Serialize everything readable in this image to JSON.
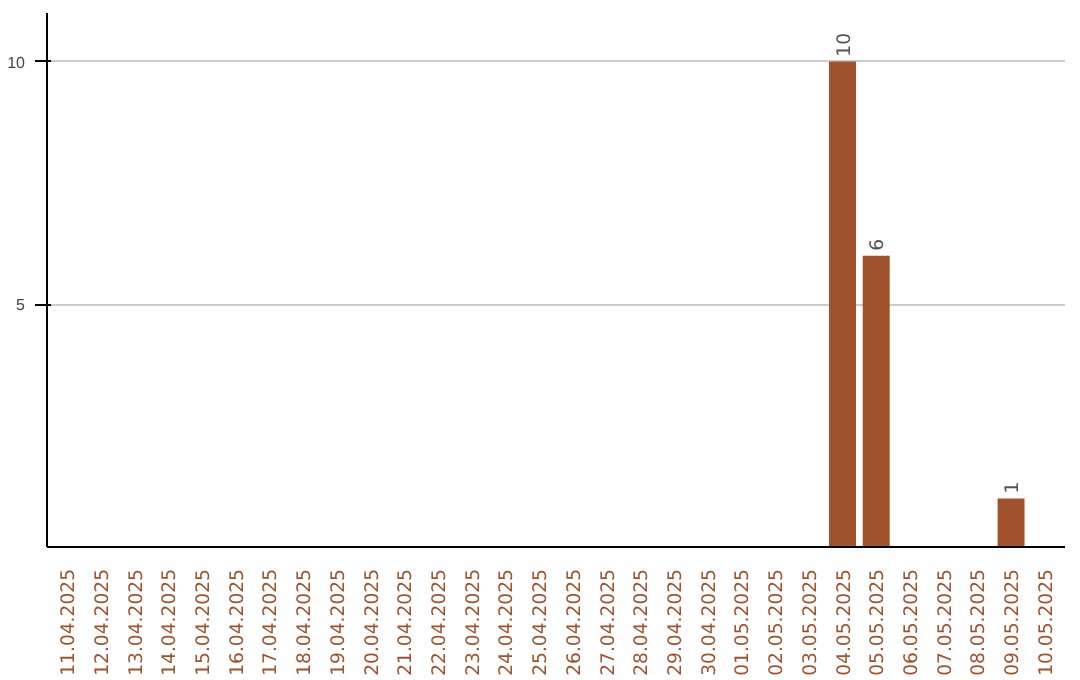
{
  "chart_data": {
    "type": "bar",
    "categories": [
      "11.04.2025",
      "12.04.2025",
      "13.04.2025",
      "14.04.2025",
      "15.04.2025",
      "16.04.2025",
      "17.04.2025",
      "18.04.2025",
      "19.04.2025",
      "20.04.2025",
      "21.04.2025",
      "22.04.2025",
      "23.04.2025",
      "24.04.2025",
      "25.04.2025",
      "26.04.2025",
      "27.04.2025",
      "28.04.2025",
      "29.04.2025",
      "30.04.2025",
      "01.05.2025",
      "02.05.2025",
      "03.05.2025",
      "04.05.2025",
      "05.05.2025",
      "06.05.2025",
      "07.05.2025",
      "08.05.2025",
      "09.05.2025",
      "10.05.2025"
    ],
    "values": [
      null,
      null,
      null,
      null,
      null,
      null,
      null,
      null,
      null,
      null,
      null,
      null,
      null,
      null,
      null,
      null,
      null,
      null,
      null,
      null,
      null,
      null,
      null,
      10,
      6,
      null,
      null,
      null,
      1,
      null
    ],
    "color": "#a0522d",
    "ylim": [
      0,
      11
    ],
    "yticks": [
      5,
      10
    ],
    "grid": "y",
    "data_labels": true
  }
}
